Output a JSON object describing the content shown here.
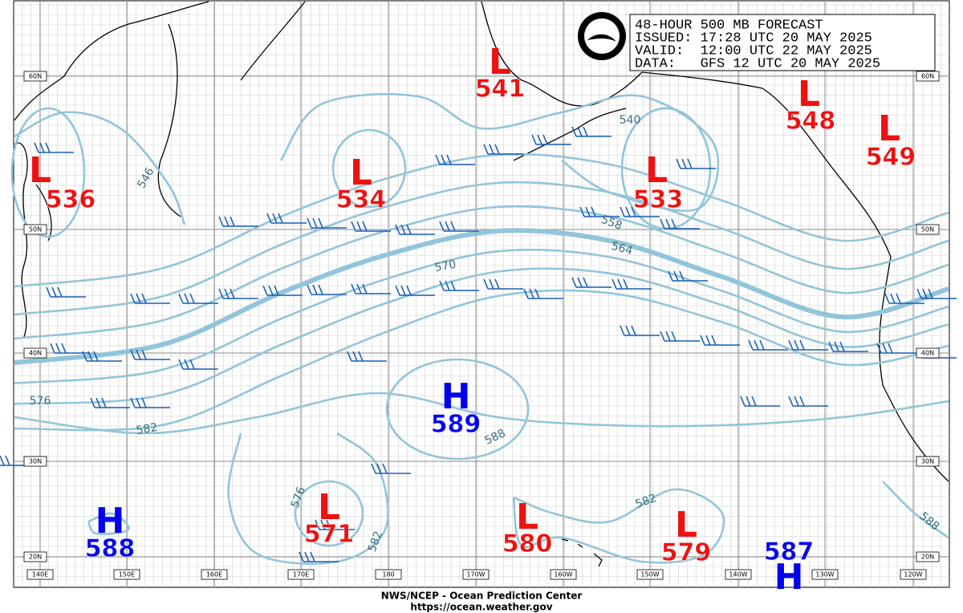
{
  "header": {
    "title": "48-HOUR 500 MB FORECAST",
    "issued": "ISSUED: 17:28 UTC 20 MAY 2025",
    "valid": "VALID:  12:00 UTC 22 MAY 2025",
    "data": "DATA:   GFS 12 UTC 20 MAY 2025"
  },
  "centers": [
    {
      "letter": "L",
      "value": 536
    },
    {
      "letter": "L",
      "value": 534
    },
    {
      "letter": "L",
      "value": 541
    },
    {
      "letter": "L",
      "value": 533
    },
    {
      "letter": "L",
      "value": 548
    },
    {
      "letter": "L",
      "value": 549
    },
    {
      "letter": "H",
      "value": 589
    },
    {
      "letter": "H",
      "value": 588
    },
    {
      "letter": "L",
      "value": 571
    },
    {
      "letter": "L",
      "value": 580
    },
    {
      "letter": "L",
      "value": 579
    },
    {
      "letter": "H",
      "value": 587
    }
  ],
  "contour_labels": [
    546,
    540,
    558,
    564,
    570,
    576,
    582,
    588,
    576,
    582,
    582,
    588
  ],
  "latitudes": [
    "60N",
    "50N",
    "40N",
    "30N",
    "20N"
  ],
  "longitudes": [
    "140E",
    "150E",
    "160E",
    "170E",
    "180",
    "170W",
    "160W",
    "150W",
    "140W",
    "130W",
    "120W"
  ],
  "footer": {
    "agency": "NWS/NCEP - Ocean Prediction Center",
    "url": "https://ocean.weather.gov"
  }
}
